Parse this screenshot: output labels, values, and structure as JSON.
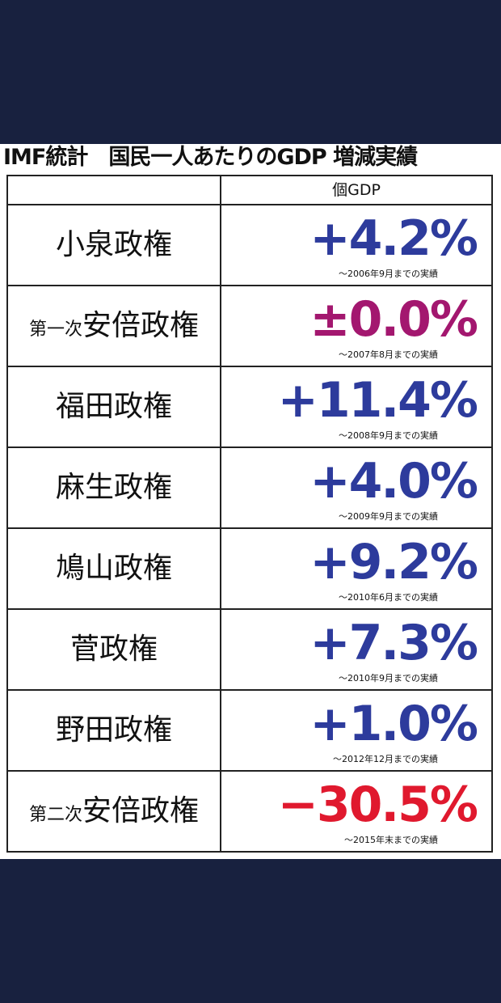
{
  "header": {
    "title": "IMF統計　国民一人あたりのGDP 増減実績",
    "column": "個GDP"
  },
  "table": {
    "rows": [
      {
        "name": "小泉政権",
        "value": "+4.2%",
        "note": "～2006年9月までの実績",
        "color": "#2d3b9c"
      },
      {
        "prefix": "第一次",
        "name": "安倍政権",
        "value": "±0.0%",
        "note": "～2007年8月までの実績",
        "color": "#a3176f"
      },
      {
        "name": "福田政権",
        "value": "+11.4%",
        "note": "～2008年9月までの実績",
        "color": "#2d3b9c"
      },
      {
        "name": "麻生政権",
        "value": "+4.0%",
        "note": "～2009年9月までの実績",
        "color": "#2d3b9c"
      },
      {
        "name": "鳩山政権",
        "value": "+9.2%",
        "note": "～2010年6月までの実績",
        "color": "#2d3b9c"
      },
      {
        "name": "菅政権",
        "value": "+7.3%",
        "note": "～2010年9月までの実績",
        "color": "#2d3b9c"
      },
      {
        "name": "野田政権",
        "value": "+1.0%",
        "note": "～2012年12月までの実績",
        "color": "#2d3b9c"
      },
      {
        "prefix": "第二次",
        "name": "安倍政権",
        "value": "−30.5%",
        "note": "～2015年末までの実績",
        "color": "#e0192e"
      }
    ]
  }
}
